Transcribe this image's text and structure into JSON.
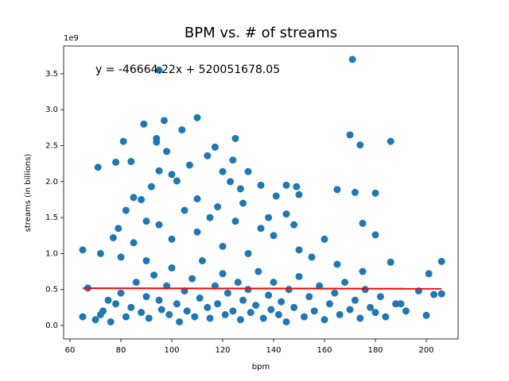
{
  "chart_data": {
    "type": "scatter",
    "title": "BPM vs. # of streams",
    "x_label": "bpm",
    "y_label": "streams (in billions)",
    "y_offset_label": "1e9",
    "annotation": "y = -46664.22x + 520051678.05",
    "color": "#1f77b4",
    "x": [
      65,
      65,
      67,
      71,
      72,
      72,
      75,
      77,
      78,
      79,
      80,
      81,
      82,
      84,
      85,
      88,
      89,
      90,
      92,
      94,
      94,
      95,
      95,
      97,
      98,
      100,
      102,
      104,
      107,
      110,
      110,
      114,
      117,
      120,
      123,
      124,
      125,
      127,
      130,
      135,
      141,
      145,
      149,
      150,
      160,
      165,
      170,
      171,
      172,
      174,
      175,
      180,
      180,
      186,
      186,
      190,
      197,
      200,
      201,
      203,
      206,
      206,
      70,
      73,
      76,
      78,
      80,
      82,
      84,
      86,
      88,
      90,
      91,
      93,
      95,
      96,
      98,
      99,
      100,
      102,
      103,
      105,
      106,
      108,
      109,
      111,
      112,
      114,
      115,
      117,
      118,
      120,
      121,
      122,
      124,
      126,
      127,
      128,
      130,
      131,
      133,
      134,
      136,
      138,
      139,
      140,
      142,
      143,
      145,
      146,
      148,
      150,
      152,
      154,
      156,
      158,
      160,
      162,
      164,
      166,
      168,
      170,
      172,
      174,
      176,
      178,
      180,
      182,
      184,
      188,
      192,
      100,
      110,
      120,
      130,
      140,
      150,
      95,
      105,
      115,
      125,
      135,
      145,
      155,
      165,
      175,
      85,
      90,
      118,
      128,
      138,
      148
    ],
    "values": [
      1.05,
      0.12,
      0.52,
      2.2,
      1.0,
      0.15,
      0.35,
      1.22,
      2.27,
      1.35,
      0.95,
      2.56,
      1.6,
      2.28,
      1.78,
      1.75,
      2.8,
      1.45,
      1.93,
      2.6,
      2.55,
      3.55,
      2.15,
      2.85,
      2.42,
      2.1,
      2.01,
      2.72,
      2.23,
      2.89,
      1.76,
      2.36,
      2.48,
      2.14,
      2.0,
      2.3,
      2.6,
      1.9,
      2.14,
      1.95,
      1.8,
      1.95,
      1.93,
      1.82,
      1.2,
      1.89,
      2.65,
      3.7,
      1.85,
      2.51,
      1.42,
      1.84,
      1.26,
      2.56,
      0.88,
      0.3,
      0.48,
      0.14,
      0.72,
      0.43,
      0.89,
      0.44,
      0.08,
      0.2,
      0.05,
      0.3,
      0.45,
      0.12,
      0.25,
      0.6,
      0.18,
      0.4,
      0.1,
      0.7,
      0.35,
      0.22,
      0.55,
      0.15,
      0.8,
      0.3,
      0.05,
      0.48,
      0.2,
      0.65,
      0.12,
      0.38,
      0.9,
      0.25,
      0.1,
      0.55,
      0.3,
      0.72,
      0.15,
      0.45,
      0.2,
      0.6,
      0.08,
      0.35,
      0.5,
      0.18,
      0.28,
      0.75,
      0.1,
      0.42,
      0.22,
      0.6,
      0.15,
      0.33,
      0.05,
      0.5,
      0.25,
      0.68,
      0.12,
      0.4,
      0.2,
      0.55,
      0.08,
      0.3,
      0.45,
      0.15,
      0.6,
      0.22,
      0.35,
      0.1,
      0.5,
      0.25,
      0.18,
      0.4,
      0.12,
      0.3,
      0.2,
      1.2,
      1.3,
      1.1,
      1.0,
      1.25,
      1.05,
      1.4,
      1.6,
      1.5,
      1.45,
      1.35,
      1.55,
      0.95,
      0.85,
      0.75,
      1.15,
      0.9,
      1.65,
      1.7,
      1.5,
      1.4
    ],
    "fit_line": {
      "color": "#ff0000",
      "x": [
        65,
        206
      ],
      "values": [
        0.517,
        0.51
      ]
    },
    "xlim": [
      57.5,
      212.5
    ],
    "ylim": [
      -0.188,
      3.886
    ],
    "xticks": [
      60,
      80,
      100,
      120,
      140,
      160,
      180,
      200
    ],
    "yticks": [
      {
        "value": 0,
        "label": "0.0"
      },
      0.5,
      {
        "value": 1,
        "label": "1.0"
      },
      1.5,
      {
        "value": 2,
        "label": "2.0"
      },
      2.5,
      {
        "value": 3,
        "label": "3.0"
      },
      3.5
    ]
  }
}
